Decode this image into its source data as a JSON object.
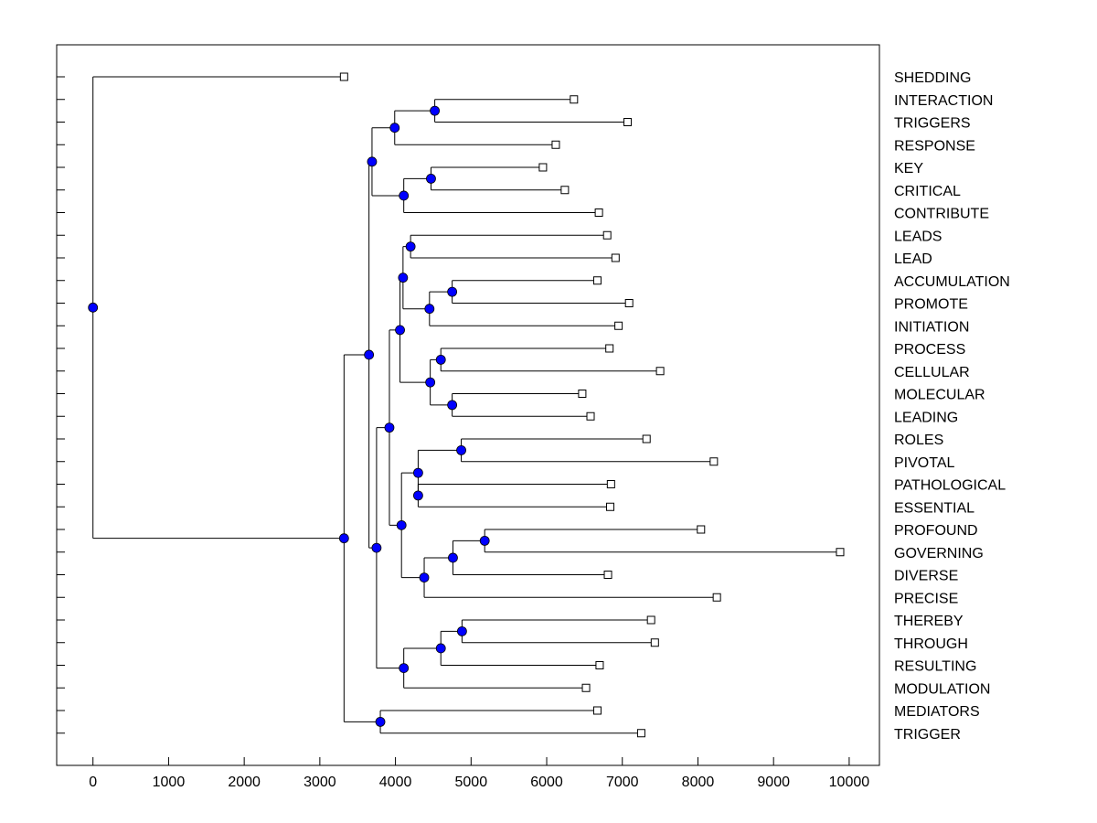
{
  "chart_data": {
    "type": "dendrogram",
    "title": "",
    "xlabel": "",
    "ylabel": "",
    "xlim": [
      -480,
      10400
    ],
    "xticks": [
      0,
      1000,
      2000,
      3000,
      4000,
      5000,
      6000,
      7000,
      8000,
      9000,
      10000
    ],
    "colors": {
      "node": "#0000ff",
      "line": "#000000",
      "leaf": "#ffffff"
    },
    "leaves": [
      {
        "label": "SHEDDING",
        "x": 3320
      },
      {
        "label": "INTERACTION",
        "x": 6360
      },
      {
        "label": "TRIGGERS",
        "x": 7070
      },
      {
        "label": "RESPONSE",
        "x": 6120
      },
      {
        "label": "KEY",
        "x": 5950
      },
      {
        "label": "CRITICAL",
        "x": 6240
      },
      {
        "label": "CONTRIBUTE",
        "x": 6690
      },
      {
        "label": "LEADS",
        "x": 6800
      },
      {
        "label": "LEAD",
        "x": 6910
      },
      {
        "label": "ACCUMULATION",
        "x": 6670
      },
      {
        "label": "PROMOTE",
        "x": 7090
      },
      {
        "label": "INITIATION",
        "x": 6950
      },
      {
        "label": "PROCESS",
        "x": 6830
      },
      {
        "label": "CELLULAR",
        "x": 7500
      },
      {
        "label": "MOLECULAR",
        "x": 6470
      },
      {
        "label": "LEADING",
        "x": 6580
      },
      {
        "label": "ROLES",
        "x": 7320
      },
      {
        "label": "PIVOTAL",
        "x": 8210
      },
      {
        "label": "PATHOLOGICAL",
        "x": 6850
      },
      {
        "label": "ESSENTIAL",
        "x": 6840
      },
      {
        "label": "PROFOUND",
        "x": 8040
      },
      {
        "label": "GOVERNING",
        "x": 9880
      },
      {
        "label": "DIVERSE",
        "x": 6810
      },
      {
        "label": "PRECISE",
        "x": 8250
      },
      {
        "label": "THEREBY",
        "x": 7380
      },
      {
        "label": "THROUGH",
        "x": 7430
      },
      {
        "label": "RESULTING",
        "x": 6700
      },
      {
        "label": "MODULATION",
        "x": 6520
      },
      {
        "label": "MEDIATORS",
        "x": 6670
      },
      {
        "label": "TRIGGER",
        "x": 7250
      }
    ],
    "nodes": [
      {
        "id": "n1",
        "x": 4520,
        "children": [
          "L1",
          "L2"
        ]
      },
      {
        "id": "n2",
        "x": 3990,
        "children": [
          "n1",
          "L3"
        ]
      },
      {
        "id": "n3",
        "x": 4470,
        "children": [
          "L4",
          "L5"
        ]
      },
      {
        "id": "n4",
        "x": 4110,
        "children": [
          "n3",
          "L6"
        ]
      },
      {
        "id": "n5",
        "x": 3690,
        "children": [
          "n2",
          "n4"
        ]
      },
      {
        "id": "n6",
        "x": 4200,
        "children": [
          "L7",
          "L8"
        ]
      },
      {
        "id": "n7",
        "x": 4750,
        "children": [
          "L9",
          "L10"
        ]
      },
      {
        "id": "n8",
        "x": 4450,
        "children": [
          "n7",
          "L11"
        ]
      },
      {
        "id": "n9",
        "x": 4100,
        "children": [
          "n6",
          "n8"
        ]
      },
      {
        "id": "n10",
        "x": 4600,
        "children": [
          "L12",
          "L13"
        ]
      },
      {
        "id": "n11",
        "x": 4750,
        "children": [
          "L14",
          "L15"
        ]
      },
      {
        "id": "n12",
        "x": 4460,
        "children": [
          "n10",
          "n11"
        ]
      },
      {
        "id": "n13",
        "x": 4060,
        "children": [
          "n9",
          "n12"
        ]
      },
      {
        "id": "n14",
        "x": 4870,
        "children": [
          "L16",
          "L17"
        ]
      },
      {
        "id": "n15",
        "x": 4300,
        "children": [
          "L18",
          "L19"
        ]
      },
      {
        "id": "n16",
        "x": 4300,
        "children": [
          "n14",
          "n15"
        ]
      },
      {
        "id": "n17",
        "x": 5180,
        "children": [
          "L20",
          "L21"
        ]
      },
      {
        "id": "n18",
        "x": 4760,
        "children": [
          "n17",
          "L22"
        ]
      },
      {
        "id": "n19",
        "x": 4380,
        "children": [
          "n18",
          "L23"
        ]
      },
      {
        "id": "n20",
        "x": 4080,
        "children": [
          "n16",
          "n19"
        ]
      },
      {
        "id": "n21",
        "x": 3920,
        "children": [
          "n13",
          "n20"
        ]
      },
      {
        "id": "n22",
        "x": 4880,
        "children": [
          "L24",
          "L25"
        ]
      },
      {
        "id": "n23",
        "x": 4600,
        "children": [
          "n22",
          "L26"
        ]
      },
      {
        "id": "n24",
        "x": 4110,
        "children": [
          "n23",
          "L27"
        ]
      },
      {
        "id": "n25",
        "x": 3750,
        "children": [
          "n21",
          "n24"
        ]
      },
      {
        "id": "n26",
        "x": 3650,
        "children": [
          "n5",
          "n25"
        ]
      },
      {
        "id": "n27",
        "x": 3800,
        "children": [
          "L28",
          "L29"
        ]
      },
      {
        "id": "n28",
        "x": 3320,
        "children": [
          "n26",
          "n27"
        ]
      },
      {
        "id": "n29",
        "x": 0,
        "children": [
          "L0",
          "n28"
        ]
      }
    ]
  }
}
